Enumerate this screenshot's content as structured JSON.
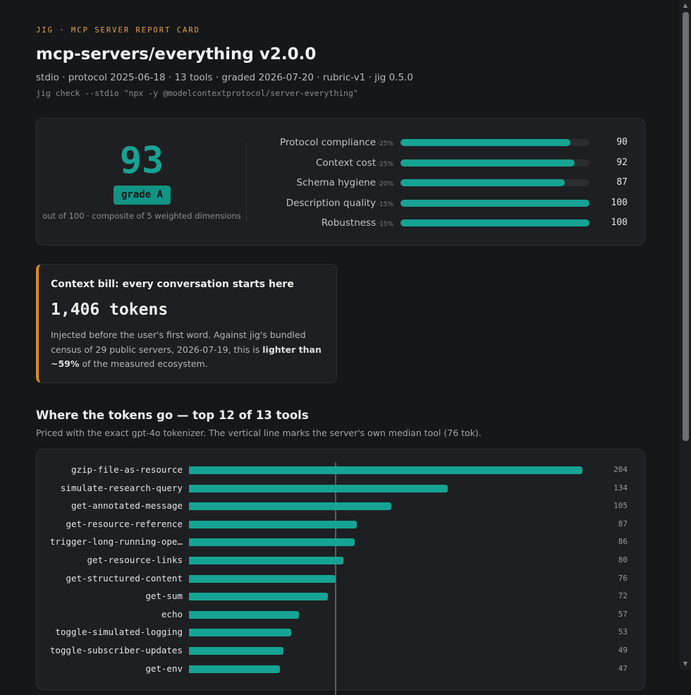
{
  "header": {
    "eyebrow": "JIG · MCP SERVER REPORT CARD",
    "title": "mcp-servers/everything v2.0.0",
    "meta": "stdio · protocol 2025-06-18 · 13 tools · graded 2026-07-20 · rubric-v1 · jig 0.5.0",
    "command": "jig check --stdio \"npx -y @modelcontextprotocol/server-everything\""
  },
  "score": {
    "value": "93",
    "grade": "grade A",
    "subtitle": "out of 100 · composite of 5 weighted dimensions",
    "accent_color": "#16a394"
  },
  "dimensions": [
    {
      "label": "Protocol compliance",
      "weight": "·25%",
      "value": "90",
      "fraction": 0.9
    },
    {
      "label": "Context cost",
      "weight": "·25%",
      "value": "92",
      "fraction": 0.92
    },
    {
      "label": "Schema hygiene",
      "weight": "·20%",
      "value": "87",
      "fraction": 0.87
    },
    {
      "label": "Description quality",
      "weight": "·15%",
      "value": "100",
      "fraction": 1.0
    },
    {
      "label": "Robustness",
      "weight": "·15%",
      "value": "100",
      "fraction": 1.0
    }
  ],
  "context_bill": {
    "title": "Context bill: every conversation starts here",
    "tokens": "1,406 tokens",
    "text_before": "Injected before the user's first word. Against jig's bundled census of 29 public servers, 2026-07-19, this is ",
    "text_bold": "lighter than ~59%",
    "text_after": " of the measured ecosystem.",
    "accent_color": "#e08b1c"
  },
  "tokens_section": {
    "title": "Where the tokens go — top 12 of 13 tools",
    "subtitle": "Priced with the exact gpt-4o tokenizer. The vertical line marks the server's own median tool (76 tok)."
  },
  "chart_data": {
    "type": "bar",
    "orientation": "horizontal",
    "categories": [
      "gzip-file-as-resource",
      "simulate-research-query",
      "get-annotated-message",
      "get-resource-reference",
      "trigger-long-running-ope…",
      "get-resource-links",
      "get-structured-content",
      "get-sum",
      "echo",
      "toggle-simulated-logging",
      "toggle-subscriber-updates",
      "get-env"
    ],
    "values": [
      204,
      134,
      105,
      87,
      86,
      80,
      76,
      72,
      57,
      53,
      49,
      47
    ],
    "median": 76,
    "xlim": [
      0,
      204
    ]
  },
  "scrollbar": {
    "up_icon": "▲",
    "down_icon": "▼"
  }
}
